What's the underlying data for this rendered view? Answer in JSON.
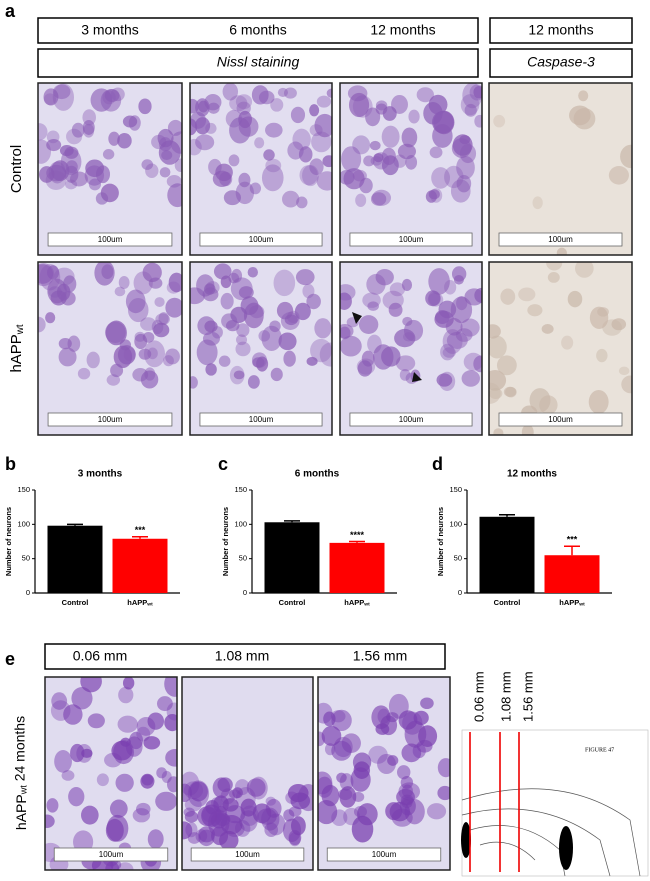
{
  "panel_labels": [
    "a",
    "b",
    "c",
    "d",
    "e"
  ],
  "panel_a": {
    "headers": [
      "3 months",
      "6 months",
      "12 months",
      "12 months"
    ],
    "stains": [
      "Nissl staining",
      "Caspase-3"
    ],
    "rows": [
      {
        "label": "Control"
      },
      {
        "label": "hAPP",
        "sub": "wt"
      }
    ],
    "scale_bar": "100um"
  },
  "chart_data": [
    {
      "type": "bar",
      "title": "3 months",
      "ylabel": "Number of neurons",
      "categories": [
        {
          "label": "Control"
        },
        {
          "label": "hAPP",
          "sub": "wt"
        }
      ],
      "values": [
        98,
        79
      ],
      "errors": [
        2,
        3
      ],
      "colors": [
        "#000000",
        "#ff0000"
      ],
      "annotations": [
        null,
        "***"
      ],
      "ylim": [
        0,
        150
      ],
      "yticks": [
        0,
        50,
        100,
        150
      ]
    },
    {
      "type": "bar",
      "title": "6 months",
      "ylabel": "Number of neurons",
      "categories": [
        {
          "label": "Control"
        },
        {
          "label": "hAPP",
          "sub": "wt"
        }
      ],
      "values": [
        103,
        73
      ],
      "errors": [
        2,
        2
      ],
      "colors": [
        "#000000",
        "#ff0000"
      ],
      "annotations": [
        null,
        "****"
      ],
      "ylim": [
        0,
        150
      ],
      "yticks": [
        0,
        50,
        100,
        150
      ]
    },
    {
      "type": "bar",
      "title": "12 months",
      "ylabel": "Number of neurons",
      "categories": [
        {
          "label": "Control"
        },
        {
          "label": "hAPP",
          "sub": "wt"
        }
      ],
      "values": [
        111,
        55
      ],
      "errors": [
        3,
        13
      ],
      "colors": [
        "#000000",
        "#ff0000"
      ],
      "annotations": [
        null,
        "***"
      ],
      "ylim": [
        0,
        150
      ],
      "yticks": [
        0,
        50,
        100,
        150
      ]
    }
  ],
  "panel_e": {
    "depths": [
      "0.06 mm",
      "1.08 mm",
      "1.56 mm"
    ],
    "row": {
      "label": "hAPP",
      "sub": "wt",
      "rest": " 24 months"
    },
    "scale_bar": "100um",
    "atlas_title": "FIGURE 47"
  }
}
